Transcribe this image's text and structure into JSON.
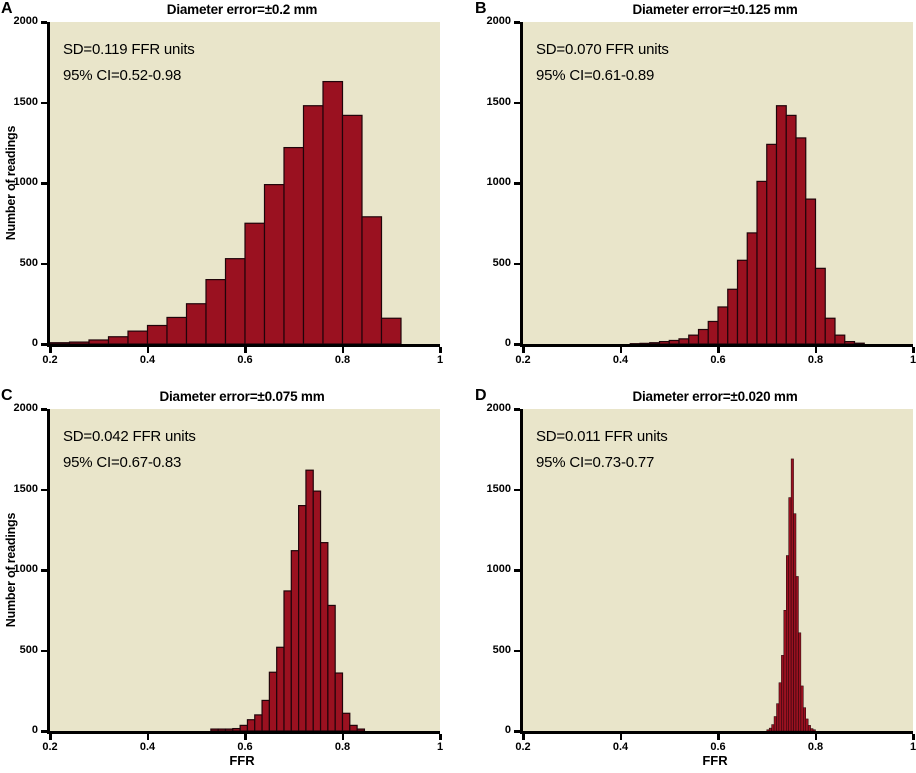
{
  "figure": {
    "axes": {
      "y_ticks": [
        "0",
        "500",
        "1000",
        "1500",
        "2000"
      ],
      "x_ticks": [
        "0.2",
        "0.4",
        "0.6",
        "0.8",
        "1"
      ]
    },
    "colors": {
      "plot_background": "#e9e5ca",
      "bar_fill": "#9a1120",
      "bar_stroke": "#20040a",
      "axis": "#000000"
    }
  },
  "chart_data": [
    {
      "panel": "A",
      "type": "bar",
      "title": "Diameter error=±0.2 mm",
      "sd_label": "SD=0.119 FFR units",
      "ci_label": "95% CI=0.52-0.98",
      "xlabel": "FFR",
      "ylabel": "Number of readings",
      "xlim": [
        0.2,
        1.0
      ],
      "ylim": [
        0,
        2000
      ],
      "bin_start": 0.2,
      "bin_width": 0.04,
      "counts": [
        8,
        12,
        25,
        45,
        80,
        115,
        165,
        250,
        400,
        530,
        750,
        990,
        1220,
        1480,
        1630,
        1420,
        790,
        160
      ]
    },
    {
      "panel": "B",
      "type": "bar",
      "title": "Diameter error=±0.125 mm",
      "sd_label": "SD=0.070 FFR units",
      "ci_label": "95% CI=0.61-0.89",
      "xlabel": "FFR",
      "ylabel": "Number of readings",
      "xlim": [
        0.2,
        1.0
      ],
      "ylim": [
        0,
        2000
      ],
      "bin_start": 0.42,
      "bin_width": 0.02,
      "counts": [
        2,
        4,
        8,
        15,
        22,
        32,
        55,
        90,
        140,
        230,
        340,
        520,
        690,
        1010,
        1240,
        1480,
        1420,
        1280,
        900,
        470,
        160,
        55,
        15,
        5
      ]
    },
    {
      "panel": "C",
      "type": "bar",
      "title": "Diameter error=±0.075 mm",
      "sd_label": "SD=0.042 FFR units",
      "ci_label": "95% CI=0.67-0.83",
      "xlabel": "FFR",
      "ylabel": "Number of readings",
      "xlim": [
        0.2,
        1.0
      ],
      "ylim": [
        0,
        2000
      ],
      "bin_start": 0.53,
      "bin_width": 0.015,
      "counts": [
        12,
        12,
        12,
        15,
        35,
        70,
        100,
        190,
        365,
        520,
        870,
        1120,
        1400,
        1620,
        1490,
        1170,
        780,
        360,
        110,
        35,
        12
      ]
    },
    {
      "panel": "D",
      "type": "bar",
      "title": "Diameter error=±0.020 mm",
      "sd_label": "SD=0.011 FFR units",
      "ci_label": "95% CI=0.73-0.77",
      "xlabel": "FFR",
      "ylabel": "Number of readings",
      "xlim": [
        0.2,
        1.0
      ],
      "ylim": [
        0,
        2000
      ],
      "bin_start": 0.7,
      "bin_width": 0.005,
      "counts": [
        8,
        18,
        40,
        90,
        170,
        300,
        470,
        750,
        1090,
        1450,
        1690,
        1350,
        960,
        610,
        280,
        145,
        75,
        35,
        15,
        8
      ]
    }
  ]
}
